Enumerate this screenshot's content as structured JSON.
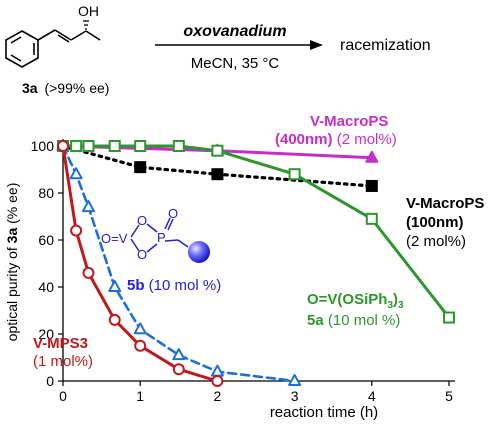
{
  "scheme": {
    "compound_label": "3a",
    "compound_note": "(>99% ee)",
    "oh_label": "OH",
    "catalyst": "oxovanadium",
    "conditions": "MeCN, 35 °C",
    "product": "racemization"
  },
  "inset": {
    "struct_label": "O=V",
    "struct_o": "O",
    "struct_p": "P",
    "struct_o2": "O",
    "struct_o3": "O",
    "struct_o4": "O",
    "label_bold": "5b",
    "label_rest": " (10 mol %)"
  },
  "annotations": {
    "vmps3_name": "V-MPS3",
    "vmps3_loading": "(1 mol%)",
    "macro400_name": "V-MacroPS",
    "macro400_size": "(400nm)",
    "macro400_loading": " (2 mol%)",
    "macro100_name": "V-MacroPS",
    "macro100_size": "(100nm)",
    "macro100_loading": "(2 mol%)",
    "osiph3_formula_a": "O=V(OSiPh",
    "osiph3_formula_sub": "3",
    "osiph3_formula_b": ")",
    "osiph3_formula_sub2": "3",
    "osiph3_name_bold": "5a",
    "osiph3_loading": " (10 mol %)"
  },
  "colors": {
    "vmps3": "#c0191c",
    "inset5b": "#1e6fd6",
    "osiph3": "#2c962f",
    "macro400": "#c72ec7",
    "macro100": "#000000",
    "label5b": "#2222cc"
  },
  "chart_data": {
    "type": "line",
    "xlabel": "reaction time (h)",
    "ylabel": "optical purity of 3a (% ee)",
    "xlim": [
      0,
      5
    ],
    "ylim": [
      0,
      100
    ],
    "xticks": [
      "0",
      "1",
      "2",
      "3",
      "4",
      "5"
    ],
    "yticks": [
      "0",
      "20",
      "40",
      "60",
      "80",
      "100"
    ],
    "series": [
      {
        "name": "V-MPS3 (1 mol%)",
        "marker": "circle",
        "line": "solid",
        "x": [
          0,
          0.17,
          0.33,
          0.67,
          1.0,
          1.5,
          2.0
        ],
        "y": [
          100,
          64,
          46,
          26,
          15,
          5,
          0
        ]
      },
      {
        "name": "5b (10 mol %)",
        "marker": "triangle",
        "line": "dashed",
        "x": [
          0,
          0.17,
          0.33,
          0.67,
          1.0,
          1.5,
          2.0,
          3.0
        ],
        "y": [
          100,
          88,
          74,
          40,
          22,
          11,
          4,
          0
        ]
      },
      {
        "name": "O=V(OSiPh3)3 5a (10 mol %)",
        "marker": "square-open",
        "line": "solid",
        "x": [
          0,
          0.17,
          0.33,
          0.67,
          1.0,
          1.5,
          2.0,
          3.0,
          4.0,
          5.0
        ],
        "y": [
          100,
          100,
          100,
          100,
          100,
          100,
          98,
          88,
          69,
          27
        ]
      },
      {
        "name": "V-MacroPS (400nm) (2 mol%)",
        "marker": "triangle-filled",
        "line": "solid",
        "x": [
          0,
          2.0,
          4.0
        ],
        "y": [
          100,
          98,
          95
        ]
      },
      {
        "name": "V-MacroPS (100nm) (2 mol%)",
        "marker": "square-filled",
        "line": "dotted",
        "x": [
          0,
          1.0,
          2.0,
          4.0
        ],
        "y": [
          100,
          91,
          88,
          83
        ]
      }
    ]
  }
}
